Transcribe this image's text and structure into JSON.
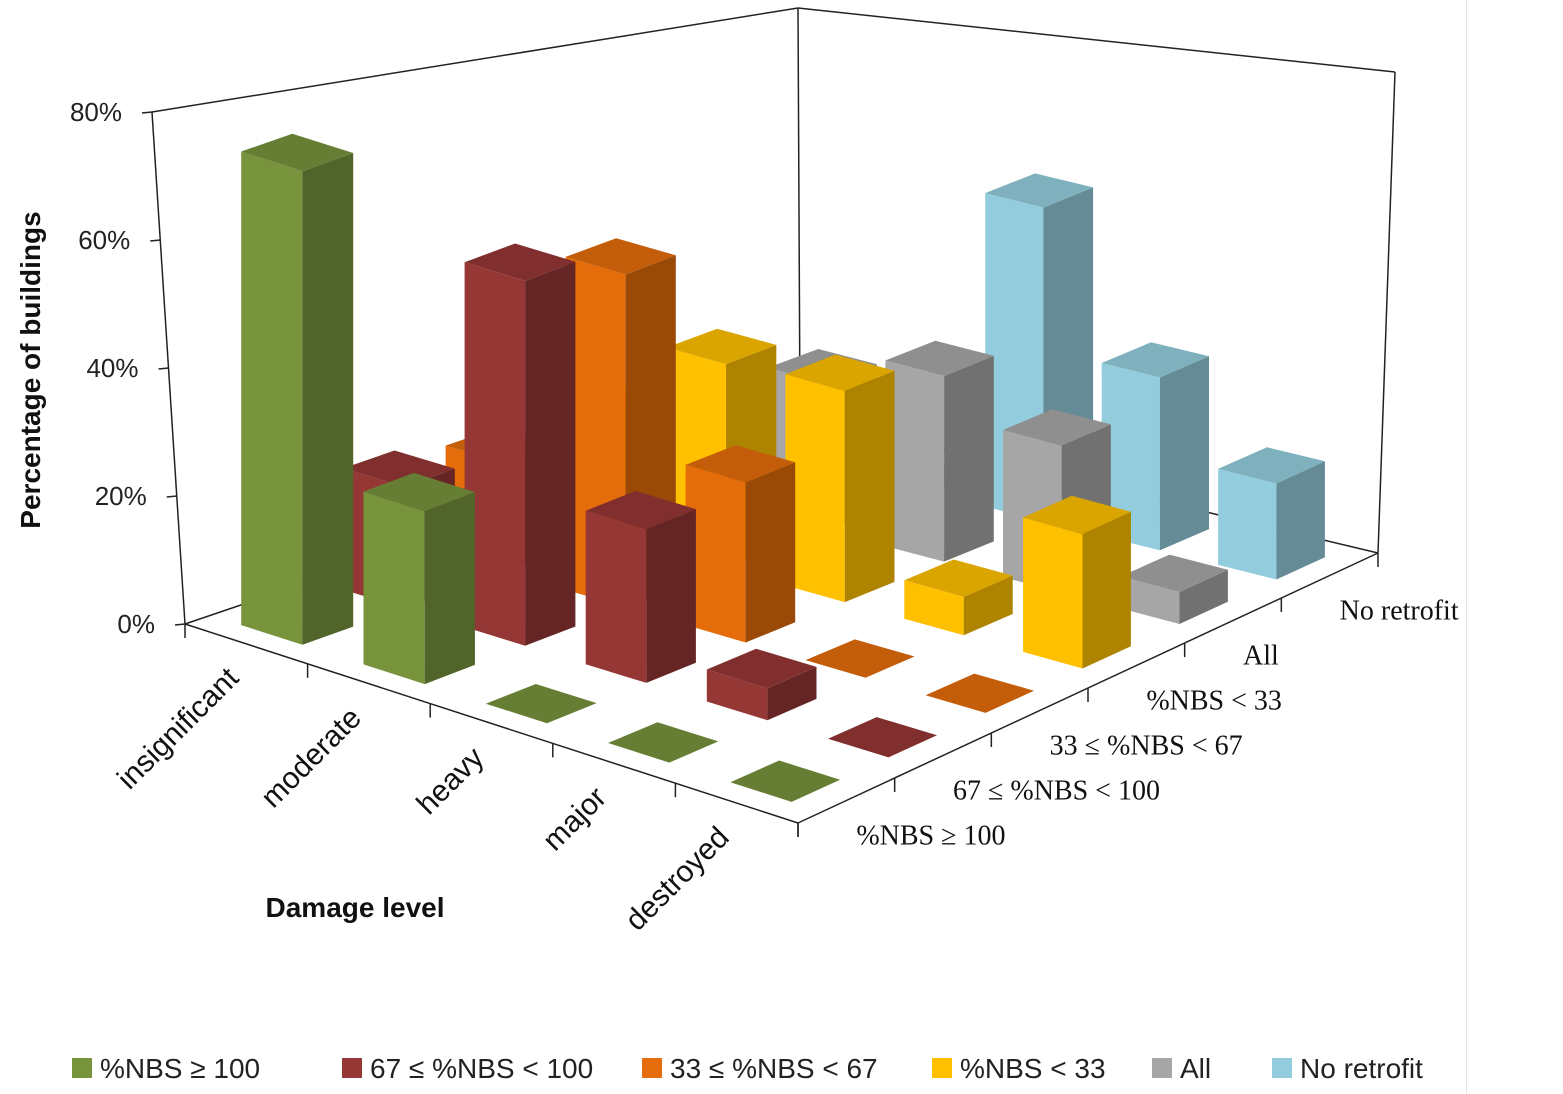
{
  "chart_data": {
    "type": "bar",
    "subtype": "3d-column",
    "title": "",
    "xlabel": "Damage level",
    "ylabel": "Percentage of buildings",
    "zlabel": "",
    "categories": [
      "insignificant",
      "moderate",
      "heavy",
      "major",
      "destroyed"
    ],
    "y_ticks": [
      "0%",
      "20%",
      "40%",
      "60%",
      "80%"
    ],
    "ylim": [
      0,
      80
    ],
    "grid": false,
    "legend_position": "bottom",
    "series": [
      {
        "name": "%NBS ≥ 100",
        "axis_label": "%NBS ≥ 100",
        "color": "#77933C",
        "values": [
          74,
          27,
          0,
          0,
          0
        ]
      },
      {
        "name": "67 ≤ %NBS < 100",
        "axis_label": "67 ≤ %NBS < 100",
        "color": "#953735",
        "values": [
          19,
          57,
          24,
          5,
          0
        ]
      },
      {
        "name": "33 ≤ %NBS < 67",
        "axis_label": "33 ≤ %NBS < 67",
        "color": "#E46C0A",
        "values": [
          17,
          52,
          25,
          0,
          0
        ]
      },
      {
        "name": "%NBS < 33",
        "axis_label": "%NBS < 33",
        "color": "#FFC000",
        "values": [
          19,
          32,
          33,
          6,
          21
        ]
      },
      {
        "name": "All",
        "axis_label": "All",
        "color": "#A6A6A6",
        "values": [
          15,
          23,
          29,
          23,
          5
        ]
      },
      {
        "name": "No retrofit",
        "axis_label": "No retrofit",
        "color": "#93CDDD",
        "values": [
          1,
          0,
          49,
          27,
          15
        ]
      }
    ]
  }
}
